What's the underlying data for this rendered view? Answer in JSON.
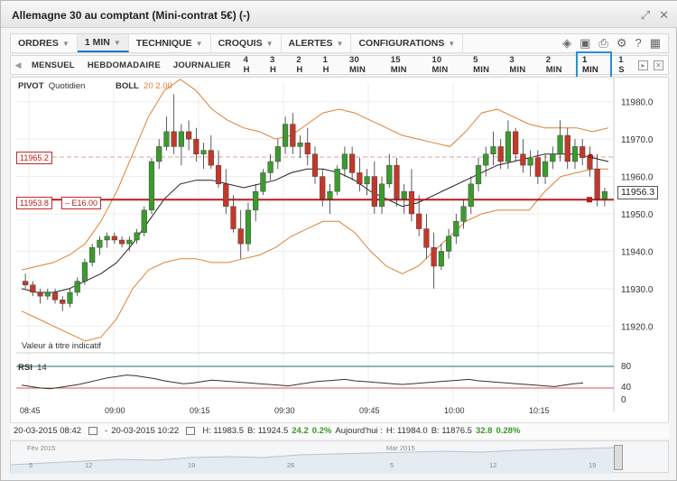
{
  "window": {
    "title": "Allemagne 30 au comptant (Mini-contrat 5€) (-)"
  },
  "menu": {
    "items": [
      {
        "label": "ORDRES"
      },
      {
        "label": "1 MIN"
      },
      {
        "label": "TECHNIQUE"
      },
      {
        "label": "CROQUIS"
      },
      {
        "label": "ALERTES"
      },
      {
        "label": "CONFIGURATIONS"
      }
    ]
  },
  "timeframes": {
    "items": [
      "MENSUEL",
      "HEBDOMADAIRE",
      "JOURNALIER",
      "4 H",
      "3 H",
      "2 H",
      "1 H",
      "30 MIN",
      "15 MIN",
      "10 MIN",
      "5 MIN",
      "3 MIN",
      "2 MIN",
      "1 MIN",
      "1 S"
    ],
    "active": "1 MIN"
  },
  "indicators": {
    "pivot_label": "PIVOT",
    "pivot_period": "Quotidien",
    "boll_label": "BOLL",
    "boll_params": "20  2.00",
    "note": "Valeur à titre indicatif",
    "rsi_label": "RSI",
    "rsi_param": "14"
  },
  "price_tags": {
    "pivot": "11965.2",
    "position": "11953.8",
    "position_pl": "– E16.00",
    "current": "11956.3"
  },
  "colors": {
    "up": "#3c9a2f",
    "down": "#c0392b",
    "boll": "#e08030",
    "ma": "#222222",
    "position_line": "#b71c1c",
    "rsi_line": "#333333",
    "rsi_upper": "#1f6f6f",
    "rsi_lower": "#e0544b",
    "accent": "#2a8fd6"
  },
  "chart_data": {
    "type": "candlestick",
    "ylim": [
      11915,
      11985
    ],
    "y_ticks": [
      "11980.0",
      "11970.0",
      "11960.0",
      "11950.0",
      "11940.0",
      "11930.0",
      "11920.0"
    ],
    "x_ticks": [
      "08:45",
      "09:00",
      "09:15",
      "09:30",
      "09:45",
      "10:00",
      "10:15"
    ],
    "rsi_ticks": [
      "80",
      "40",
      "0"
    ],
    "ohlc": [
      [
        11932,
        11934,
        11930,
        11931
      ],
      [
        11931,
        11932,
        11928,
        11929
      ],
      [
        11929,
        11930,
        11926,
        11928
      ],
      [
        11928,
        11930,
        11927,
        11929
      ],
      [
        11929,
        11930,
        11926,
        11927
      ],
      [
        11927,
        11928,
        11924,
        11926
      ],
      [
        11926,
        11930,
        11925,
        11929
      ],
      [
        11929,
        11933,
        11928,
        11932
      ],
      [
        11932,
        11938,
        11931,
        11937
      ],
      [
        11937,
        11942,
        11936,
        11941
      ],
      [
        11941,
        11944,
        11939,
        11943
      ],
      [
        11943,
        11945,
        11941,
        11944
      ],
      [
        11944,
        11945,
        11942,
        11943
      ],
      [
        11943,
        11944,
        11941,
        11942
      ],
      [
        11942,
        11944,
        11940,
        11943
      ],
      [
        11943,
        11946,
        11942,
        11945
      ],
      [
        11945,
        11952,
        11944,
        11951
      ],
      [
        11951,
        11965,
        11950,
        11964
      ],
      [
        11964,
        11970,
        11962,
        11968
      ],
      [
        11968,
        11976,
        11967,
        11972
      ],
      [
        11972,
        11982,
        11966,
        11968
      ],
      [
        11968,
        11974,
        11963,
        11972
      ],
      [
        11972,
        11975,
        11967,
        11970
      ],
      [
        11970,
        11973,
        11964,
        11966
      ],
      [
        11966,
        11969,
        11962,
        11967
      ],
      [
        11967,
        11971,
        11962,
        11963
      ],
      [
        11963,
        11967,
        11957,
        11958
      ],
      [
        11958,
        11962,
        11950,
        11952
      ],
      [
        11952,
        11955,
        11945,
        11946
      ],
      [
        11946,
        11951,
        11938,
        11942
      ],
      [
        11942,
        11953,
        11940,
        11951
      ],
      [
        11951,
        11958,
        11948,
        11956
      ],
      [
        11956,
        11962,
        11955,
        11961
      ],
      [
        11961,
        11966,
        11959,
        11964
      ],
      [
        11964,
        11970,
        11962,
        11968
      ],
      [
        11968,
        11976,
        11966,
        11974
      ],
      [
        11974,
        11977,
        11966,
        11968
      ],
      [
        11968,
        11971,
        11965,
        11969
      ],
      [
        11969,
        11973,
        11963,
        11966
      ],
      [
        11966,
        11968,
        11958,
        11960
      ],
      [
        11960,
        11962,
        11952,
        11954
      ],
      [
        11954,
        11958,
        11950,
        11956
      ],
      [
        11956,
        11963,
        11955,
        11962
      ],
      [
        11962,
        11968,
        11960,
        11966
      ],
      [
        11966,
        11968,
        11959,
        11961
      ],
      [
        11961,
        11965,
        11956,
        11958
      ],
      [
        11958,
        11962,
        11955,
        11960
      ],
      [
        11960,
        11964,
        11950,
        11952
      ],
      [
        11952,
        11960,
        11950,
        11958
      ],
      [
        11958,
        11966,
        11957,
        11963
      ],
      [
        11963,
        11965,
        11952,
        11954
      ],
      [
        11954,
        11958,
        11950,
        11956
      ],
      [
        11956,
        11962,
        11948,
        11950
      ],
      [
        11950,
        11955,
        11944,
        11946
      ],
      [
        11946,
        11950,
        11938,
        11941
      ],
      [
        11941,
        11945,
        11930,
        11936
      ],
      [
        11936,
        11942,
        11935,
        11940
      ],
      [
        11940,
        11946,
        11938,
        11944
      ],
      [
        11944,
        11950,
        11942,
        11948
      ],
      [
        11948,
        11954,
        11946,
        11952
      ],
      [
        11952,
        11960,
        11950,
        11958
      ],
      [
        11958,
        11965,
        11956,
        11963
      ],
      [
        11963,
        11968,
        11960,
        11966
      ],
      [
        11966,
        11972,
        11963,
        11968
      ],
      [
        11968,
        11970,
        11962,
        11964
      ],
      [
        11964,
        11975,
        11962,
        11972
      ],
      [
        11972,
        11973,
        11964,
        11966
      ],
      [
        11966,
        11970,
        11961,
        11963
      ],
      [
        11963,
        11967,
        11960,
        11965
      ],
      [
        11965,
        11967,
        11958,
        11960
      ],
      [
        11960,
        11966,
        11958,
        11964
      ],
      [
        11964,
        11968,
        11962,
        11966
      ],
      [
        11966,
        11975,
        11964,
        11971
      ],
      [
        11971,
        11973,
        11962,
        11964
      ],
      [
        11964,
        11970,
        11962,
        11968
      ],
      [
        11968,
        11970,
        11963,
        11965
      ],
      [
        11965,
        11968,
        11960,
        11962
      ],
      [
        11962,
        11966,
        11952,
        11954
      ],
      [
        11954,
        11957,
        11952,
        11956
      ]
    ],
    "boll_upper": [
      11935,
      11936,
      11937,
      11939,
      11942,
      11948,
      11956,
      11966,
      11976,
      11983,
      11986,
      11983,
      11978,
      11975,
      11973,
      11972,
      11970,
      11971,
      11974,
      11977,
      11978,
      11977,
      11975,
      11973,
      11971,
      11970,
      11969,
      11968,
      11972,
      11977,
      11978,
      11976,
      11974,
      11973,
      11973,
      11973,
      11972,
      11973
    ],
    "boll_lower": [
      11924,
      11922,
      11920,
      11918,
      11916,
      11917,
      11922,
      11930,
      11935,
      11937,
      11938,
      11938,
      11937,
      11937,
      11938,
      11939,
      11941,
      11944,
      11946,
      11948,
      11948,
      11945,
      11940,
      11936,
      11934,
      11936,
      11940,
      11944,
      11948,
      11950,
      11951,
      11951,
      11951,
      11956,
      11960,
      11961,
      11962,
      11962
    ],
    "ma": [
      11930,
      11929,
      11929,
      11930,
      11932,
      11934,
      11937,
      11942,
      11948,
      11954,
      11958,
      11959,
      11959,
      11958,
      11957,
      11958,
      11959,
      11961,
      11962,
      11962,
      11961,
      11959,
      11956,
      11954,
      11952,
      11953,
      11955,
      11957,
      11959,
      11961,
      11963,
      11964,
      11965,
      11966,
      11966,
      11966,
      11965,
      11964
    ],
    "rsi": [
      38,
      34,
      30,
      28,
      32,
      36,
      40,
      46,
      52,
      58,
      62,
      66,
      64,
      60,
      56,
      50,
      46,
      42,
      44,
      48,
      52,
      50,
      48,
      46,
      44,
      42,
      40,
      38,
      36,
      40,
      44,
      48,
      50,
      52,
      54,
      50,
      48,
      46,
      44,
      42,
      40,
      42,
      44,
      46,
      48,
      50,
      52,
      54,
      50,
      48,
      46,
      44,
      42,
      40,
      38,
      36,
      34,
      38,
      42,
      44
    ]
  },
  "bottom": {
    "date_from": "20-03-2015 08:42",
    "date_to": "20-03-2015 10:22",
    "h": "H: 11983.5",
    "b": "B: 11924.5",
    "chg": "24.2",
    "chg_pct": "0.2%",
    "today_label": "Aujourd'hui :",
    "today_h": "H: 11984.0",
    "today_b": "B: 11876.5",
    "today_chg": "32.8",
    "today_pct": "0.28%"
  },
  "navigator": {
    "month1": "Fév 2015",
    "month2": "Mar 2015",
    "ticks": [
      "5",
      "12",
      "19",
      "26",
      "5",
      "12",
      "19"
    ]
  }
}
